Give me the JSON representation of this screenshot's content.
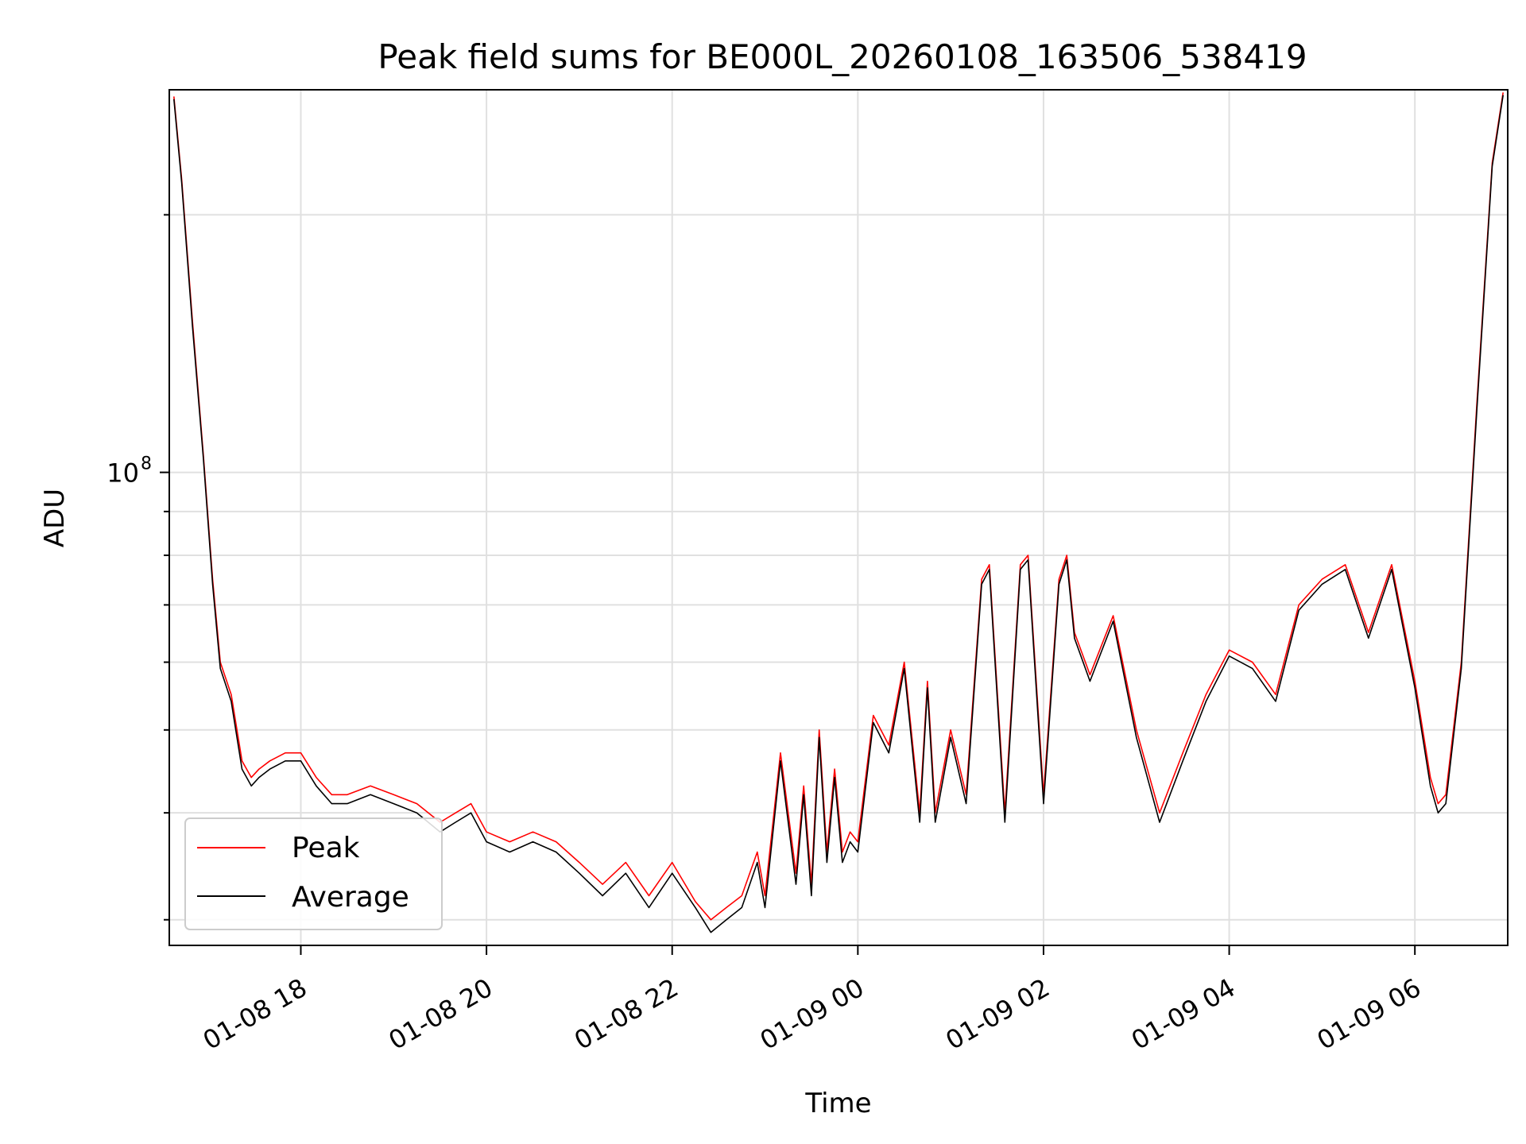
{
  "chart_data": {
    "type": "line",
    "title": "Peak field sums for BE000L_20260108_163506_538419",
    "xlabel": "Time",
    "ylabel": "ADU",
    "yscale": "log",
    "xlim": [
      "2026-01-08 16:35",
      "2026-01-09 07:00"
    ],
    "ylim": [
      28000000,
      280000000
    ],
    "x_ticks": [
      "01-08 18",
      "01-08 20",
      "01-08 22",
      "01-09 00",
      "01-09 02",
      "01-09 04",
      "01-09 06"
    ],
    "y_tick_label": {
      "base": "10",
      "exp": "8"
    },
    "grid": true,
    "legend": {
      "location": "lower-left",
      "entries": [
        "Peak",
        "Average"
      ]
    },
    "colors": {
      "Peak": "#ff0000",
      "Average": "#000000"
    },
    "series": [
      {
        "name": "Peak",
        "x": [
          "2026-01-08 16:38",
          "2026-01-08 16:43",
          "2026-01-08 16:50",
          "2026-01-08 16:57",
          "2026-01-08 17:03",
          "2026-01-08 17:08",
          "2026-01-08 17:15",
          "2026-01-08 17:22",
          "2026-01-08 17:28",
          "2026-01-08 17:33",
          "2026-01-08 17:40",
          "2026-01-08 17:50",
          "2026-01-08 18:00",
          "2026-01-08 18:10",
          "2026-01-08 18:20",
          "2026-01-08 18:30",
          "2026-01-08 18:45",
          "2026-01-08 19:00",
          "2026-01-08 19:15",
          "2026-01-08 19:30",
          "2026-01-08 19:40",
          "2026-01-08 19:50",
          "2026-01-08 20:00",
          "2026-01-08 20:15",
          "2026-01-08 20:30",
          "2026-01-08 20:45",
          "2026-01-08 21:00",
          "2026-01-08 21:15",
          "2026-01-08 21:30",
          "2026-01-08 21:45",
          "2026-01-08 22:00",
          "2026-01-08 22:15",
          "2026-01-08 22:25",
          "2026-01-08 22:35",
          "2026-01-08 22:45",
          "2026-01-08 22:55",
          "2026-01-08 23:00",
          "2026-01-08 23:10",
          "2026-01-08 23:20",
          "2026-01-08 23:25",
          "2026-01-08 23:30",
          "2026-01-08 23:35",
          "2026-01-08 23:40",
          "2026-01-08 23:45",
          "2026-01-08 23:50",
          "2026-01-08 23:55",
          "2026-01-09 00:00",
          "2026-01-09 00:10",
          "2026-01-09 00:20",
          "2026-01-09 00:30",
          "2026-01-09 00:40",
          "2026-01-09 00:45",
          "2026-01-09 00:50",
          "2026-01-09 01:00",
          "2026-01-09 01:10",
          "2026-01-09 01:20",
          "2026-01-09 01:25",
          "2026-01-09 01:35",
          "2026-01-09 01:45",
          "2026-01-09 01:50",
          "2026-01-09 02:00",
          "2026-01-09 02:10",
          "2026-01-09 02:15",
          "2026-01-09 02:20",
          "2026-01-09 02:30",
          "2026-01-09 02:45",
          "2026-01-09 03:00",
          "2026-01-09 03:15",
          "2026-01-09 03:30",
          "2026-01-09 03:45",
          "2026-01-09 04:00",
          "2026-01-09 04:15",
          "2026-01-09 04:30",
          "2026-01-09 04:45",
          "2026-01-09 05:00",
          "2026-01-09 05:15",
          "2026-01-09 05:30",
          "2026-01-09 05:45",
          "2026-01-09 06:00",
          "2026-01-09 06:10",
          "2026-01-09 06:15",
          "2026-01-09 06:20",
          "2026-01-09 06:30",
          "2026-01-09 06:40",
          "2026-01-09 06:50",
          "2026-01-09 06:57"
        ],
        "values": [
          275000000,
          220000000,
          150000000,
          105000000,
          75000000,
          60000000,
          55000000,
          46000000,
          44000000,
          45000000,
          46000000,
          47000000,
          47000000,
          44000000,
          42000000,
          42000000,
          43000000,
          42000000,
          41000000,
          39000000,
          40000000,
          41000000,
          38000000,
          37000000,
          38000000,
          37000000,
          35000000,
          33000000,
          35000000,
          32000000,
          35000000,
          31500000,
          30000000,
          31000000,
          32000000,
          36000000,
          32000000,
          47000000,
          34000000,
          43000000,
          33000000,
          50000000,
          36000000,
          45000000,
          36000000,
          38000000,
          37000000,
          52000000,
          48000000,
          60000000,
          40000000,
          57000000,
          40000000,
          50000000,
          42000000,
          75000000,
          78000000,
          40000000,
          78000000,
          80000000,
          42000000,
          75000000,
          80000000,
          65000000,
          58000000,
          68000000,
          50000000,
          40000000,
          47000000,
          55000000,
          62000000,
          60000000,
          55000000,
          70000000,
          75000000,
          78000000,
          65000000,
          78000000,
          57000000,
          44000000,
          41000000,
          42000000,
          60000000,
          120000000,
          230000000,
          278000000
        ]
      },
      {
        "name": "Average",
        "x": [
          "2026-01-08 16:38",
          "2026-01-08 16:43",
          "2026-01-08 16:50",
          "2026-01-08 16:57",
          "2026-01-08 17:03",
          "2026-01-08 17:08",
          "2026-01-08 17:15",
          "2026-01-08 17:22",
          "2026-01-08 17:28",
          "2026-01-08 17:33",
          "2026-01-08 17:40",
          "2026-01-08 17:50",
          "2026-01-08 18:00",
          "2026-01-08 18:10",
          "2026-01-08 18:20",
          "2026-01-08 18:30",
          "2026-01-08 18:45",
          "2026-01-08 19:00",
          "2026-01-08 19:15",
          "2026-01-08 19:30",
          "2026-01-08 19:40",
          "2026-01-08 19:50",
          "2026-01-08 20:00",
          "2026-01-08 20:15",
          "2026-01-08 20:30",
          "2026-01-08 20:45",
          "2026-01-08 21:00",
          "2026-01-08 21:15",
          "2026-01-08 21:30",
          "2026-01-08 21:45",
          "2026-01-08 22:00",
          "2026-01-08 22:15",
          "2026-01-08 22:25",
          "2026-01-08 22:35",
          "2026-01-08 22:45",
          "2026-01-08 22:55",
          "2026-01-08 23:00",
          "2026-01-08 23:10",
          "2026-01-08 23:20",
          "2026-01-08 23:25",
          "2026-01-08 23:30",
          "2026-01-08 23:35",
          "2026-01-08 23:40",
          "2026-01-08 23:45",
          "2026-01-08 23:50",
          "2026-01-08 23:55",
          "2026-01-09 00:00",
          "2026-01-09 00:10",
          "2026-01-09 00:20",
          "2026-01-09 00:30",
          "2026-01-09 00:40",
          "2026-01-09 00:45",
          "2026-01-09 00:50",
          "2026-01-09 01:00",
          "2026-01-09 01:10",
          "2026-01-09 01:20",
          "2026-01-09 01:25",
          "2026-01-09 01:35",
          "2026-01-09 01:45",
          "2026-01-09 01:50",
          "2026-01-09 02:00",
          "2026-01-09 02:10",
          "2026-01-09 02:15",
          "2026-01-09 02:20",
          "2026-01-09 02:30",
          "2026-01-09 02:45",
          "2026-01-09 03:00",
          "2026-01-09 03:15",
          "2026-01-09 03:30",
          "2026-01-09 03:45",
          "2026-01-09 04:00",
          "2026-01-09 04:15",
          "2026-01-09 04:30",
          "2026-01-09 04:45",
          "2026-01-09 05:00",
          "2026-01-09 05:15",
          "2026-01-09 05:30",
          "2026-01-09 05:45",
          "2026-01-09 06:00",
          "2026-01-09 06:10",
          "2026-01-09 06:15",
          "2026-01-09 06:20",
          "2026-01-09 06:30",
          "2026-01-09 06:40",
          "2026-01-09 06:50",
          "2026-01-09 06:57"
        ],
        "values": [
          273000000,
          218000000,
          148000000,
          104000000,
          74000000,
          59000000,
          54000000,
          45000000,
          43000000,
          44000000,
          45000000,
          46000000,
          46000000,
          43000000,
          41000000,
          41000000,
          42000000,
          41000000,
          40000000,
          38000000,
          39000000,
          40000000,
          37000000,
          36000000,
          37000000,
          36000000,
          34000000,
          32000000,
          34000000,
          31000000,
          34000000,
          31000000,
          29000000,
          30000000,
          31000000,
          35000000,
          31000000,
          46000000,
          33000000,
          42000000,
          32000000,
          49000000,
          35000000,
          44000000,
          35000000,
          37000000,
          36000000,
          51000000,
          47000000,
          59000000,
          39000000,
          56000000,
          39000000,
          49000000,
          41000000,
          74000000,
          77000000,
          39000000,
          77000000,
          79000000,
          41000000,
          74000000,
          79000000,
          64000000,
          57000000,
          67000000,
          49000000,
          39000000,
          46000000,
          54000000,
          61000000,
          59000000,
          54000000,
          69000000,
          74000000,
          77000000,
          64000000,
          77000000,
          56000000,
          43000000,
          40000000,
          41000000,
          59000000,
          118000000,
          228000000,
          276000000
        ]
      }
    ]
  }
}
